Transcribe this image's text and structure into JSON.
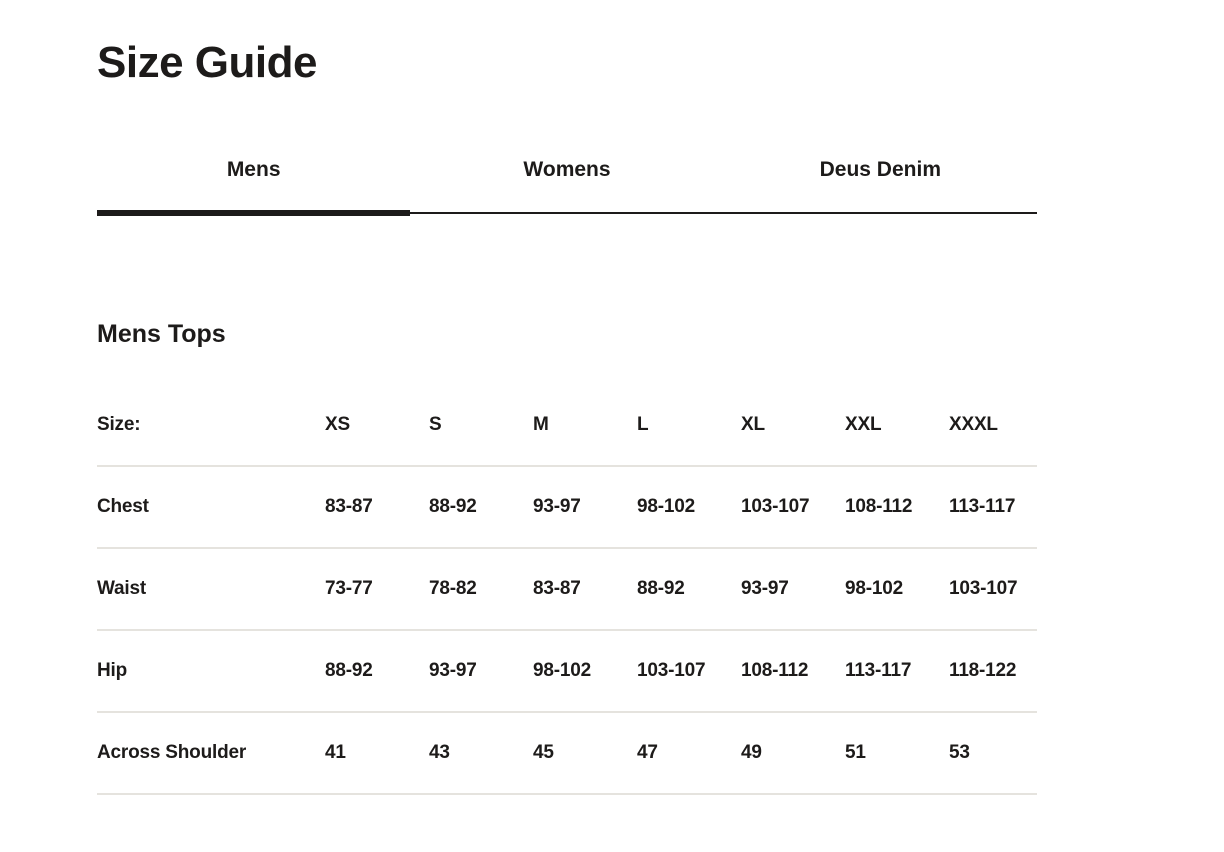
{
  "page": {
    "title": "Size Guide"
  },
  "tabs": [
    {
      "label": "Mens",
      "active": true
    },
    {
      "label": "Womens",
      "active": false
    },
    {
      "label": "Deus Denim",
      "active": false
    }
  ],
  "section": {
    "heading": "Mens Tops"
  },
  "table": {
    "header": {
      "label": "Size:",
      "sizes": [
        "XS",
        "S",
        "M",
        "L",
        "XL",
        "XXL",
        "XXXL"
      ]
    },
    "rows": [
      {
        "label": "Chest",
        "values": [
          "83-87",
          "88-92",
          "93-97",
          "98-102",
          "103-107",
          "108-112",
          "113-117"
        ]
      },
      {
        "label": "Waist",
        "values": [
          "73-77",
          "78-82",
          "83-87",
          "88-92",
          "93-97",
          "98-102",
          "103-107"
        ]
      },
      {
        "label": "Hip",
        "values": [
          "88-92",
          "93-97",
          "98-102",
          "103-107",
          "108-112",
          "113-117",
          "118-122"
        ]
      },
      {
        "label": "Across Shoulder",
        "values": [
          "41",
          "43",
          "45",
          "47",
          "49",
          "51",
          "53"
        ]
      }
    ]
  },
  "colors": {
    "background": "#ffffff",
    "text": "#1d1b1a",
    "tab_underline": "#1d1b1a",
    "divider": "#e5e3de"
  }
}
